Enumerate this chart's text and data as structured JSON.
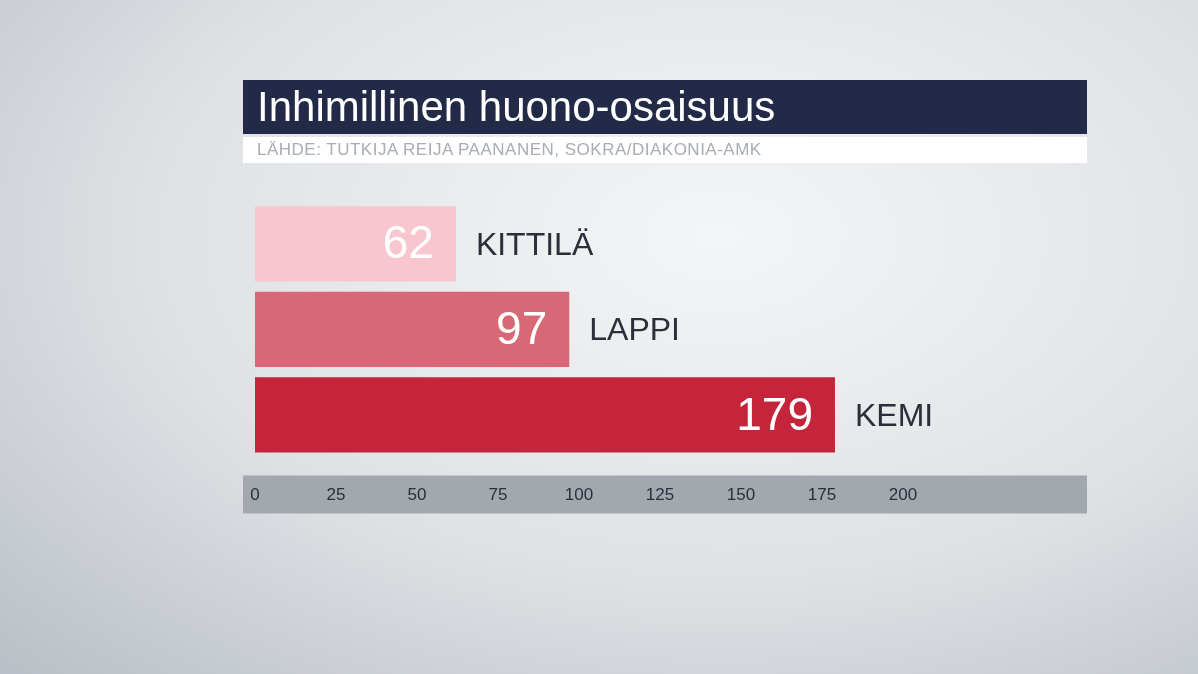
{
  "chart_data": {
    "type": "bar",
    "orientation": "horizontal",
    "title": "Inhimillinen huono-osaisuus",
    "annotations": [
      "LÄHDE: TUTKIJA REIJA PAANANEN, SOKRA/DIAKONIA-AMK"
    ],
    "categories": [
      "KITTILÄ",
      "LAPPI",
      "KEMI"
    ],
    "values": [
      62,
      97,
      179
    ],
    "colors": [
      "#f8c6cf",
      "#d96876",
      "#c4253b"
    ],
    "xlim": [
      0,
      200
    ],
    "xticks": [
      0,
      25,
      50,
      75,
      100,
      125,
      150,
      175,
      200
    ],
    "data_labels": true
  }
}
